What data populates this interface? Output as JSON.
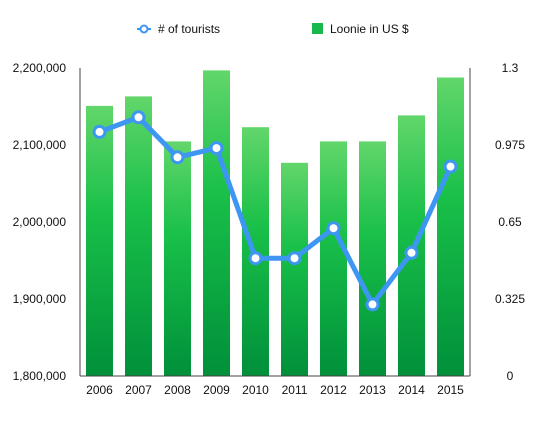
{
  "chart_data": {
    "type": "bar",
    "categories": [
      "2006",
      "2007",
      "2008",
      "2009",
      "2010",
      "2011",
      "2012",
      "2013",
      "2014",
      "2015"
    ],
    "series": [
      {
        "name": "# of tourists",
        "type": "line",
        "axis": "left",
        "values": [
          2117000,
          2136000,
          2084000,
          2096000,
          1953000,
          1953000,
          1992000,
          1893000,
          1960000,
          2072000
        ]
      },
      {
        "name": "Loonie in US $",
        "type": "bar",
        "axis": "right",
        "values": [
          1.14,
          1.18,
          0.99,
          1.29,
          1.05,
          0.9,
          0.99,
          0.99,
          1.1,
          1.26
        ]
      }
    ],
    "left_axis": {
      "min": 1800000,
      "max": 2200000,
      "ticks": [
        1800000,
        1900000,
        2000000,
        2100000,
        2200000
      ]
    },
    "right_axis": {
      "min": 0,
      "max": 1.3,
      "ticks": [
        0,
        0.325,
        0.65,
        0.975,
        1.3
      ]
    },
    "legend_position": "top",
    "grid": false,
    "colors": {
      "line": "#3d96f2",
      "bar_top": "#5fd56a",
      "bar_bottom": "#00a640",
      "axis": "#333333"
    }
  }
}
